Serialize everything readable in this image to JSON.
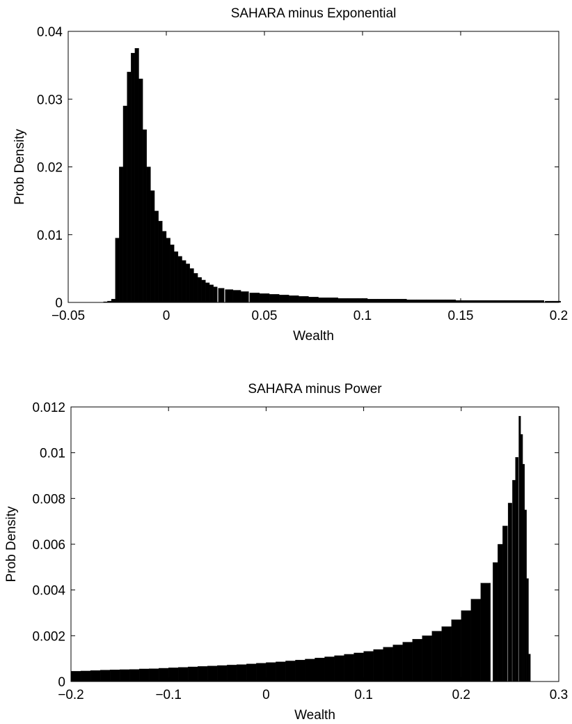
{
  "chart_data": [
    {
      "type": "bar",
      "title": "SAHARA minus Exponential",
      "xlabel": "Wealth",
      "ylabel": "Prob Density",
      "xlim": [
        -0.05,
        0.2
      ],
      "ylim": [
        0,
        0.04
      ],
      "xticks": [
        -0.05,
        0,
        0.05,
        0.1,
        0.15,
        0.2
      ],
      "xtick_labels": [
        "−0.05",
        "0",
        "0.05",
        "0.1",
        "0.15",
        "0.2"
      ],
      "yticks": [
        0,
        0.01,
        0.02,
        0.03,
        0.04
      ],
      "ytick_labels": [
        "0",
        "0.01",
        "0.02",
        "0.03",
        "0.04"
      ],
      "grid": false,
      "bar_color": "#000000",
      "x": [
        -0.031,
        -0.029,
        -0.027,
        -0.025,
        -0.023,
        -0.021,
        -0.019,
        -0.017,
        -0.015,
        -0.013,
        -0.011,
        -0.009,
        -0.007,
        -0.005,
        -0.003,
        -0.001,
        0.001,
        0.003,
        0.005,
        0.007,
        0.009,
        0.011,
        0.013,
        0.015,
        0.017,
        0.019,
        0.021,
        0.023,
        0.025,
        0.028,
        0.032,
        0.036,
        0.04,
        0.045,
        0.05,
        0.055,
        0.06,
        0.065,
        0.07,
        0.075,
        0.08,
        0.085,
        0.09,
        0.095,
        0.1,
        0.105,
        0.11,
        0.115,
        0.12,
        0.125,
        0.13,
        0.135,
        0.14,
        0.145,
        0.15,
        0.155,
        0.16,
        0.165,
        0.17,
        0.175,
        0.18,
        0.185,
        0.19,
        0.195,
        0.199
      ],
      "values": [
        0.0001,
        0.0002,
        0.0005,
        0.0095,
        0.02,
        0.029,
        0.034,
        0.0368,
        0.0375,
        0.033,
        0.0255,
        0.02,
        0.0165,
        0.0135,
        0.012,
        0.0105,
        0.0095,
        0.0085,
        0.0075,
        0.0068,
        0.0062,
        0.0057,
        0.005,
        0.0043,
        0.0037,
        0.0033,
        0.0029,
        0.0026,
        0.0023,
        0.0021,
        0.0019,
        0.0018,
        0.0016,
        0.0014,
        0.0013,
        0.0012,
        0.0011,
        0.001,
        0.0009,
        0.0008,
        0.0007,
        0.0007,
        0.0006,
        0.0006,
        0.0006,
        0.0005,
        0.0005,
        0.0005,
        0.0005,
        0.0004,
        0.0004,
        0.0004,
        0.0004,
        0.0004,
        0.0003,
        0.0003,
        0.0003,
        0.0003,
        0.0003,
        0.0003,
        0.0003,
        0.0003,
        0.0003,
        0.0002,
        0.0002
      ]
    },
    {
      "type": "bar",
      "title": "SAHARA minus Power",
      "xlabel": "Wealth",
      "ylabel": "Prob Density",
      "xlim": [
        -0.2,
        0.3
      ],
      "ylim": [
        0,
        0.012
      ],
      "xticks": [
        -0.2,
        -0.1,
        0,
        0.1,
        0.2,
        0.3
      ],
      "xtick_labels": [
        "−0.2",
        "−0.1",
        "0",
        "0.1",
        "0.2",
        "0.3"
      ],
      "yticks": [
        0,
        0.002,
        0.004,
        0.006,
        0.008,
        0.01,
        0.012
      ],
      "ytick_labels": [
        "0",
        "0.002",
        "0.004",
        "0.006",
        "0.008",
        "0.01",
        "0.012"
      ],
      "grid": false,
      "bar_color": "#000000",
      "x": [
        -0.195,
        -0.185,
        -0.175,
        -0.165,
        -0.155,
        -0.145,
        -0.135,
        -0.125,
        -0.115,
        -0.105,
        -0.095,
        -0.085,
        -0.075,
        -0.065,
        -0.055,
        -0.045,
        -0.035,
        -0.025,
        -0.015,
        -0.005,
        0.005,
        0.015,
        0.025,
        0.035,
        0.045,
        0.055,
        0.065,
        0.075,
        0.085,
        0.095,
        0.105,
        0.115,
        0.125,
        0.135,
        0.145,
        0.155,
        0.165,
        0.175,
        0.185,
        0.195,
        0.205,
        0.215,
        0.225,
        0.235,
        0.24,
        0.245,
        0.25,
        0.254,
        0.257,
        0.26,
        0.262,
        0.264,
        0.266,
        0.268,
        0.27
      ],
      "values": [
        0.00045,
        0.00046,
        0.00048,
        0.0005,
        0.00051,
        0.00052,
        0.00053,
        0.00055,
        0.00056,
        0.00058,
        0.0006,
        0.00062,
        0.00064,
        0.00066,
        0.00068,
        0.0007,
        0.00072,
        0.00074,
        0.00077,
        0.0008,
        0.00083,
        0.00086,
        0.0009,
        0.00094,
        0.00098,
        0.00103,
        0.00108,
        0.00113,
        0.00119,
        0.00125,
        0.00132,
        0.0014,
        0.0015,
        0.0016,
        0.00172,
        0.00185,
        0.002,
        0.0022,
        0.0024,
        0.0027,
        0.0031,
        0.0036,
        0.0043,
        0.0052,
        0.006,
        0.0068,
        0.0078,
        0.0088,
        0.0098,
        0.0116,
        0.0108,
        0.0095,
        0.0075,
        0.0045,
        0.0012
      ]
    }
  ]
}
